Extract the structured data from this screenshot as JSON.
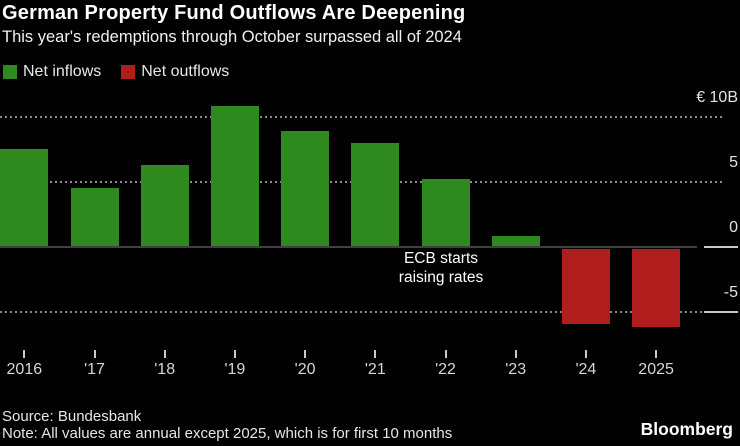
{
  "header": {
    "title": "German Property Fund Outflows Are Deepening",
    "subtitle": "This year's redemptions through October surpassed all of 2024"
  },
  "legend": {
    "items": [
      {
        "label": "Net inflows",
        "color": "#2e8a1e"
      },
      {
        "label": "Net outflows",
        "color": "#b01d1d"
      }
    ]
  },
  "chart_data": {
    "type": "bar",
    "unit": "EUR billions",
    "categories": [
      "2016",
      "'17",
      "'18",
      "'19",
      "'20",
      "'21",
      "'22",
      "'23",
      "'24",
      "2025"
    ],
    "values": [
      7.5,
      4.5,
      6.3,
      10.8,
      8.9,
      8.0,
      5.2,
      0.8,
      -6.0,
      -6.25
    ],
    "positive_color": "#2e8a1e",
    "negative_color": "#b01d1d",
    "yticks": [
      {
        "value": 10,
        "label": "€ 10B",
        "style": "dotted"
      },
      {
        "value": 5,
        "label": "5",
        "style": "dotted"
      },
      {
        "value": 0,
        "label": "0",
        "style": "solid-zero"
      },
      {
        "value": -5,
        "label": "-5",
        "style": "dotted"
      }
    ],
    "right_axis_tick_values": [
      0,
      -5
    ],
    "ylim": [
      -7.7,
      11.8
    ],
    "grid": "horizontal dotted, labels on right",
    "legend_position": "top-left",
    "annotation": {
      "lines": [
        "ECB starts",
        "raising rates"
      ],
      "anchor_category": "'22"
    }
  },
  "footer": {
    "source": "Source: Bundesbank",
    "note": "Note: All values are annual except 2025, which is for first 10 months",
    "brand": "Bloomberg"
  }
}
